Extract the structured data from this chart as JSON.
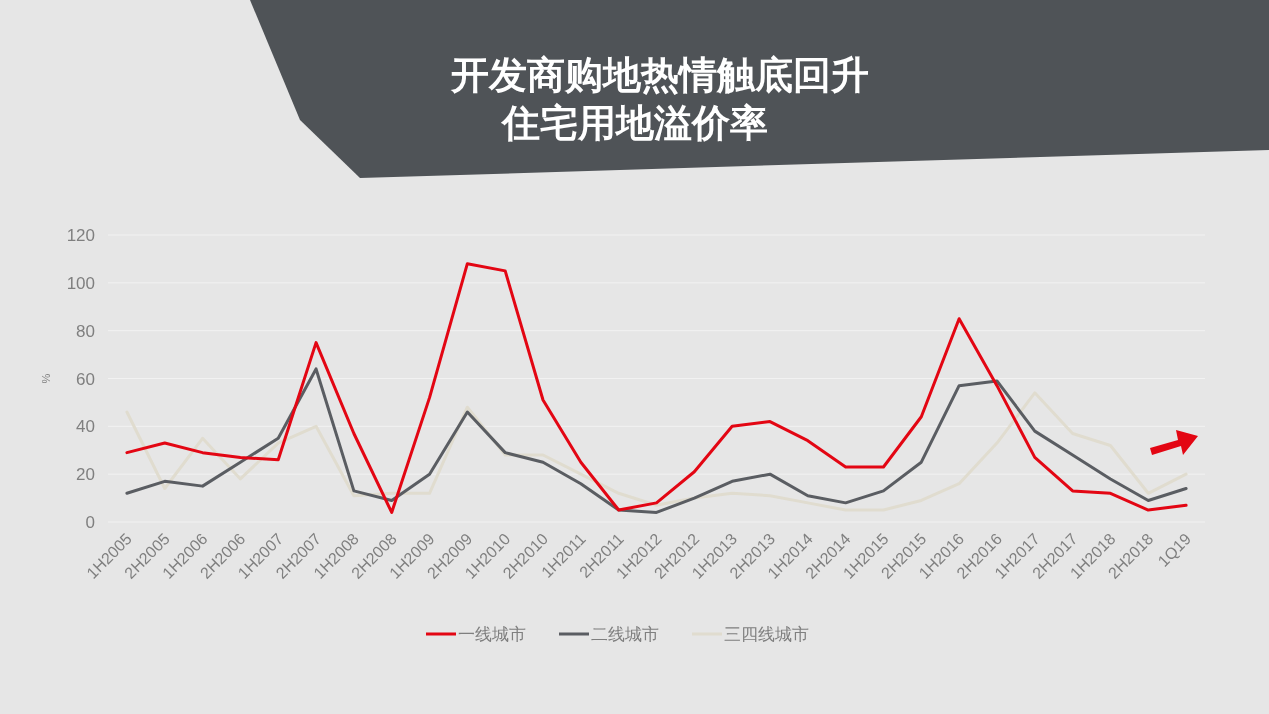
{
  "chart_data": {
    "type": "line",
    "title": "开发商购地热情触底回升",
    "subtitle": "住宅用地溢价率",
    "ylabel": "%",
    "categories": [
      "1H2005",
      "2H2005",
      "1H2006",
      "2H2006",
      "1H2007",
      "2H2007",
      "1H2008",
      "2H2008",
      "1H2009",
      "2H2009",
      "1H2010",
      "2H2010",
      "1H2011",
      "2H2011",
      "1H2012",
      "2H2012",
      "1H2013",
      "2H2013",
      "1H2014",
      "2H2014",
      "1H2015",
      "2H2015",
      "1H2016",
      "2H2016",
      "1H2017",
      "2H2017",
      "1H2018",
      "2H2018",
      "1Q19"
    ],
    "series": [
      {
        "name": "一线城市",
        "color": "#e30613",
        "values": [
          29,
          33,
          29,
          27,
          26,
          75,
          37,
          4,
          52,
          108,
          105,
          51,
          25,
          5,
          8,
          21,
          40,
          42,
          34,
          23,
          23,
          44,
          85,
          57,
          27,
          13,
          12,
          5,
          7
        ]
      },
      {
        "name": "二线城市",
        "color": "#5a5d62",
        "values": [
          12,
          17,
          15,
          25,
          35,
          64,
          13,
          9,
          20,
          46,
          29,
          25,
          16,
          5,
          4,
          10,
          17,
          20,
          11,
          8,
          13,
          25,
          57,
          59,
          38,
          28,
          18,
          9,
          14
        ]
      },
      {
        "name": "三四线城市",
        "color": "#e0dccf",
        "values": [
          46,
          14,
          35,
          18,
          33,
          40,
          11,
          12,
          12,
          48,
          28,
          28,
          20,
          12,
          7,
          10,
          12,
          11,
          8,
          5,
          5,
          9,
          16,
          33,
          54,
          37,
          32,
          12,
          20
        ]
      }
    ],
    "ylim": [
      0,
      120
    ],
    "yticks": [
      0,
      20,
      40,
      60,
      80,
      100,
      120
    ],
    "grid": "y",
    "legend": "bottom",
    "marker": "none",
    "line_style": "solid"
  }
}
